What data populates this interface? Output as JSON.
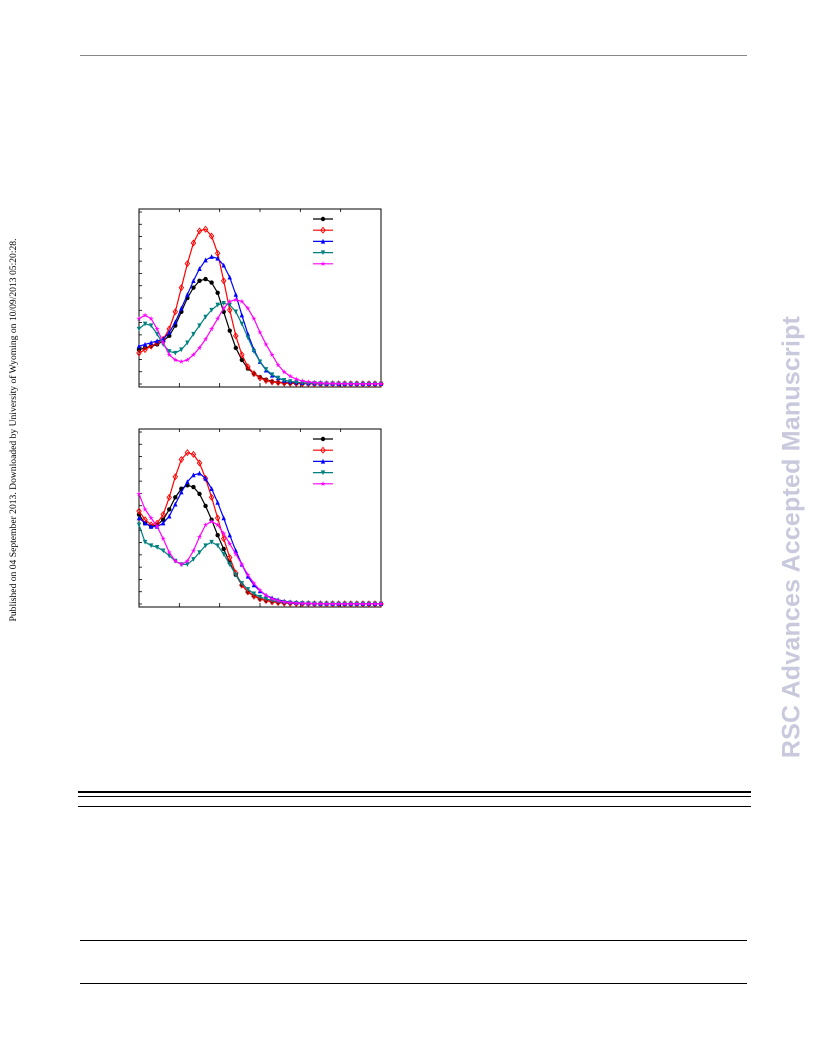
{
  "page": {
    "side_note": "Published on 04 September 2013. Downloaded by University of Wyoming on 10/09/2013 05:20:28.",
    "watermark": "RSC Advances Accepted Manuscript"
  },
  "chart_data": [
    {
      "type": "line",
      "title": "",
      "xlabel": "",
      "ylabel": "",
      "xlim": [
        0,
        60
      ],
      "ylim": [
        0,
        1
      ],
      "grid": false,
      "legend": "top-right",
      "series": [
        {
          "color": "#000000",
          "marker": "circle",
          "x": [
            0,
            1.5,
            3,
            4.5,
            6,
            7.5,
            9,
            10.5,
            12,
            13.5,
            15,
            16.5,
            18,
            19.5,
            21,
            22.5,
            24,
            25.5,
            27,
            28.5,
            30,
            31.5,
            33,
            34.5,
            36,
            37.5,
            39,
            40.5,
            42,
            43.5,
            45,
            46.5,
            48,
            49.5,
            51,
            52.5,
            54,
            55.5,
            57,
            58.5,
            60
          ],
          "y": [
            0.2,
            0.21,
            0.22,
            0.23,
            0.25,
            0.28,
            0.34,
            0.42,
            0.5,
            0.56,
            0.6,
            0.61,
            0.59,
            0.53,
            0.42,
            0.31,
            0.21,
            0.14,
            0.09,
            0.06,
            0.04,
            0.025,
            0.015,
            0.01,
            0.008,
            0.006,
            0.005,
            0.004,
            0.003,
            0.002,
            0.002,
            0.002,
            0.001,
            0.001,
            0.001,
            0.001,
            0.001,
            0.001,
            0.001,
            0.001,
            0.001
          ]
        },
        {
          "color": "#ff0000",
          "marker": "diamond",
          "x": [
            0,
            1.5,
            3,
            4.5,
            6,
            7.5,
            9,
            10.5,
            12,
            13.5,
            15,
            16.5,
            18,
            19.5,
            21,
            22.5,
            24,
            25.5,
            27,
            28.5,
            30,
            31.5,
            33,
            34.5,
            36,
            37.5,
            39,
            40.5,
            42,
            43.5,
            45,
            46.5,
            48,
            49.5,
            51,
            52.5,
            54,
            55.5,
            57,
            58.5,
            60
          ],
          "y": [
            0.18,
            0.2,
            0.22,
            0.24,
            0.26,
            0.32,
            0.42,
            0.56,
            0.7,
            0.82,
            0.89,
            0.9,
            0.86,
            0.76,
            0.6,
            0.43,
            0.28,
            0.17,
            0.1,
            0.06,
            0.035,
            0.02,
            0.012,
            0.008,
            0.005,
            0.004,
            0.003,
            0.002,
            0.002,
            0.001,
            0.001,
            0.001,
            0.001,
            0.001,
            0.001,
            0.001,
            0.001,
            0.001,
            0.001,
            0.001,
            0.001
          ]
        },
        {
          "color": "#0000ff",
          "marker": "triangle-up",
          "x": [
            0,
            1.5,
            3,
            4.5,
            6,
            7.5,
            9,
            10.5,
            12,
            13.5,
            15,
            16.5,
            18,
            19.5,
            21,
            22.5,
            24,
            25.5,
            27,
            28.5,
            30,
            31.5,
            33,
            34.5,
            36,
            37.5,
            39,
            40.5,
            42,
            43.5,
            45,
            46.5,
            48,
            49.5,
            51,
            52.5,
            54,
            55.5,
            57,
            58.5,
            60
          ],
          "y": [
            0.22,
            0.23,
            0.24,
            0.25,
            0.26,
            0.3,
            0.36,
            0.44,
            0.52,
            0.6,
            0.67,
            0.72,
            0.74,
            0.73,
            0.69,
            0.62,
            0.52,
            0.4,
            0.29,
            0.2,
            0.13,
            0.08,
            0.05,
            0.035,
            0.02,
            0.014,
            0.01,
            0.007,
            0.005,
            0.004,
            0.003,
            0.002,
            0.002,
            0.001,
            0.001,
            0.001,
            0.001,
            0.001,
            0.001,
            0.001,
            0.001
          ]
        },
        {
          "color": "#008080",
          "marker": "triangle-down",
          "x": [
            0,
            1.5,
            3,
            4.5,
            6,
            7.5,
            9,
            10.5,
            12,
            13.5,
            15,
            16.5,
            18,
            19.5,
            21,
            22.5,
            24,
            25.5,
            27,
            28.5,
            30,
            31.5,
            33,
            34.5,
            36,
            37.5,
            39,
            40.5,
            42,
            43.5,
            45,
            46.5,
            48,
            49.5,
            51,
            52.5,
            54,
            55.5,
            57,
            58.5,
            60
          ],
          "y": [
            0.32,
            0.35,
            0.34,
            0.29,
            0.23,
            0.19,
            0.18,
            0.2,
            0.24,
            0.29,
            0.34,
            0.39,
            0.43,
            0.46,
            0.47,
            0.46,
            0.42,
            0.35,
            0.27,
            0.19,
            0.13,
            0.085,
            0.055,
            0.035,
            0.022,
            0.015,
            0.01,
            0.007,
            0.005,
            0.004,
            0.003,
            0.002,
            0.002,
            0.001,
            0.001,
            0.001,
            0.001,
            0.001,
            0.001,
            0.001,
            0.001
          ]
        },
        {
          "color": "#ff00ff",
          "marker": "star",
          "x": [
            0,
            1.5,
            3,
            4.5,
            6,
            7.5,
            9,
            10.5,
            12,
            13.5,
            15,
            16.5,
            18,
            19.5,
            21,
            22.5,
            24,
            25.5,
            27,
            28.5,
            30,
            31.5,
            33,
            34.5,
            36,
            37.5,
            39,
            40.5,
            42,
            43.5,
            45,
            46.5,
            48,
            49.5,
            51,
            52.5,
            54,
            55.5,
            57,
            58.5,
            60
          ],
          "y": [
            0.38,
            0.4,
            0.38,
            0.32,
            0.24,
            0.17,
            0.14,
            0.13,
            0.14,
            0.17,
            0.21,
            0.26,
            0.32,
            0.38,
            0.44,
            0.48,
            0.49,
            0.48,
            0.44,
            0.38,
            0.3,
            0.23,
            0.17,
            0.11,
            0.07,
            0.045,
            0.028,
            0.018,
            0.012,
            0.008,
            0.006,
            0.004,
            0.003,
            0.002,
            0.002,
            0.001,
            0.001,
            0.001,
            0.001,
            0.001,
            0.001
          ]
        }
      ]
    },
    {
      "type": "line",
      "title": "",
      "xlabel": "",
      "ylabel": "",
      "xlim": [
        0,
        60
      ],
      "ylim": [
        0,
        1
      ],
      "grid": false,
      "legend": "top-right",
      "series": [
        {
          "color": "#000000",
          "marker": "circle",
          "x": [
            0,
            1.5,
            3,
            4.5,
            6,
            7.5,
            9,
            10.5,
            12,
            13.5,
            15,
            16.5,
            18,
            19.5,
            21,
            22.5,
            24,
            25.5,
            27,
            28.5,
            30,
            31.5,
            33,
            34.5,
            36,
            37.5,
            39,
            40.5,
            42,
            43.5,
            45,
            46.5,
            48,
            49.5,
            51,
            52.5,
            54,
            55.5,
            57,
            58.5,
            60
          ],
          "y": [
            0.52,
            0.47,
            0.45,
            0.46,
            0.49,
            0.55,
            0.62,
            0.67,
            0.69,
            0.68,
            0.64,
            0.57,
            0.49,
            0.4,
            0.32,
            0.24,
            0.17,
            0.11,
            0.07,
            0.05,
            0.03,
            0.02,
            0.015,
            0.01,
            0.008,
            0.006,
            0.005,
            0.004,
            0.003,
            0.002,
            0.002,
            0.002,
            0.001,
            0.001,
            0.001,
            0.001,
            0.001,
            0.001,
            0.001,
            0.001,
            0.001
          ]
        },
        {
          "color": "#ff0000",
          "marker": "diamond",
          "x": [
            0,
            1.5,
            3,
            4.5,
            6,
            7.5,
            9,
            10.5,
            12,
            13.5,
            15,
            16.5,
            18,
            19.5,
            21,
            22.5,
            24,
            25.5,
            27,
            28.5,
            30,
            31.5,
            33,
            34.5,
            36,
            37.5,
            39,
            40.5,
            42,
            43.5,
            45,
            46.5,
            48,
            49.5,
            51,
            52.5,
            54,
            55.5,
            57,
            58.5,
            60
          ],
          "y": [
            0.54,
            0.49,
            0.46,
            0.47,
            0.52,
            0.62,
            0.74,
            0.84,
            0.88,
            0.87,
            0.82,
            0.73,
            0.62,
            0.5,
            0.38,
            0.27,
            0.18,
            0.11,
            0.07,
            0.045,
            0.03,
            0.02,
            0.012,
            0.008,
            0.005,
            0.004,
            0.003,
            0.002,
            0.002,
            0.001,
            0.001,
            0.001,
            0.001,
            0.001,
            0.001,
            0.001,
            0.001,
            0.001,
            0.001,
            0.001,
            0.001
          ]
        },
        {
          "color": "#0000ff",
          "marker": "triangle-up",
          "x": [
            0,
            1.5,
            3,
            4.5,
            6,
            7.5,
            9,
            10.5,
            12,
            13.5,
            15,
            16.5,
            18,
            19.5,
            21,
            22.5,
            24,
            25.5,
            27,
            28.5,
            30,
            31.5,
            33,
            34.5,
            36,
            37.5,
            39,
            40.5,
            42,
            43.5,
            45,
            46.5,
            48,
            49.5,
            51,
            52.5,
            54,
            55.5,
            57,
            58.5,
            60
          ],
          "y": [
            0.5,
            0.47,
            0.45,
            0.45,
            0.47,
            0.51,
            0.58,
            0.65,
            0.71,
            0.75,
            0.76,
            0.73,
            0.67,
            0.59,
            0.5,
            0.4,
            0.31,
            0.23,
            0.16,
            0.11,
            0.075,
            0.05,
            0.035,
            0.024,
            0.016,
            0.011,
            0.008,
            0.006,
            0.004,
            0.003,
            0.002,
            0.002,
            0.001,
            0.001,
            0.001,
            0.001,
            0.001,
            0.001,
            0.001,
            0.001,
            0.001
          ]
        },
        {
          "color": "#008080",
          "marker": "triangle-down",
          "x": [
            0,
            1.5,
            3,
            4.5,
            6,
            7.5,
            9,
            10.5,
            12,
            13.5,
            15,
            16.5,
            18,
            19.5,
            21,
            22.5,
            24,
            25.5,
            27,
            28.5,
            30,
            31.5,
            33,
            34.5,
            36,
            37.5,
            39,
            40.5,
            42,
            43.5,
            45,
            46.5,
            48,
            49.5,
            51,
            52.5,
            54,
            55.5,
            57,
            58.5,
            60
          ],
          "y": [
            0.46,
            0.36,
            0.34,
            0.33,
            0.31,
            0.28,
            0.25,
            0.23,
            0.23,
            0.26,
            0.3,
            0.34,
            0.36,
            0.34,
            0.29,
            0.23,
            0.17,
            0.12,
            0.085,
            0.06,
            0.04,
            0.03,
            0.02,
            0.014,
            0.01,
            0.007,
            0.005,
            0.004,
            0.003,
            0.002,
            0.002,
            0.001,
            0.001,
            0.001,
            0.001,
            0.001,
            0.001,
            0.001,
            0.001,
            0.001,
            0.001
          ]
        },
        {
          "color": "#ff00ff",
          "marker": "star",
          "x": [
            0,
            1.5,
            3,
            4.5,
            6,
            7.5,
            9,
            10.5,
            12,
            13.5,
            15,
            16.5,
            18,
            19.5,
            21,
            22.5,
            24,
            25.5,
            27,
            28.5,
            30,
            31.5,
            33,
            34.5,
            36,
            37.5,
            39,
            40.5,
            42,
            43.5,
            45,
            46.5,
            48,
            49.5,
            51,
            52.5,
            54,
            55.5,
            57,
            58.5,
            60
          ],
          "y": [
            0.64,
            0.55,
            0.5,
            0.45,
            0.38,
            0.3,
            0.25,
            0.23,
            0.25,
            0.31,
            0.39,
            0.46,
            0.48,
            0.46,
            0.41,
            0.35,
            0.29,
            0.23,
            0.17,
            0.12,
            0.08,
            0.05,
            0.03,
            0.02,
            0.012,
            0.008,
            0.005,
            0.004,
            0.003,
            0.002,
            0.002,
            0.001,
            0.001,
            0.001,
            0.001,
            0.001,
            0.001,
            0.001,
            0.001,
            0.001,
            0.001
          ]
        }
      ]
    }
  ]
}
